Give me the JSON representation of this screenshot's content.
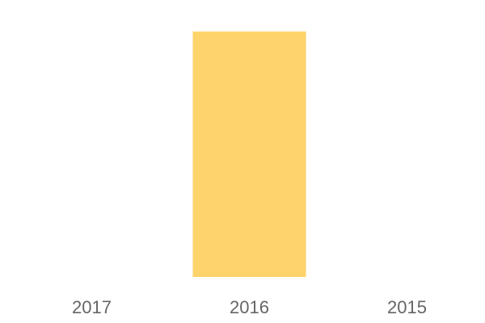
{
  "chart_data": {
    "type": "bar",
    "categories": [
      "2017",
      "2016",
      "2015"
    ],
    "values": [
      0,
      1,
      0
    ],
    "ylim": [
      0,
      1
    ],
    "grid": false,
    "bar_color": "#FFD36B",
    "tick_color": "#666666"
  }
}
